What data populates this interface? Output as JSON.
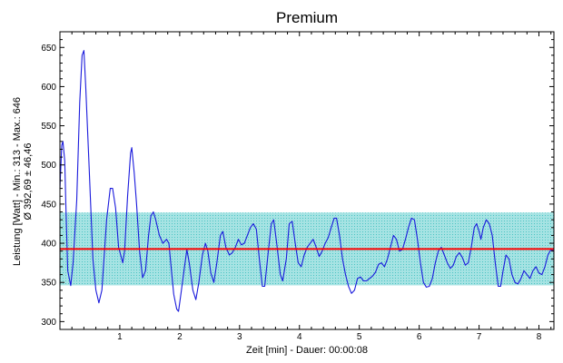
{
  "chart_data": {
    "type": "line",
    "title": "Premium",
    "xlabel": "Zeit [min] - Dauer: 00:00:08",
    "ylabel_line1": "Leistung [Watt] - Min.: 313 - Max.: 646",
    "ylabel_line2": "Ø 392,69 ± 46,46",
    "xlim": [
      0,
      8.25
    ],
    "ylim": [
      290,
      670
    ],
    "x_ticks": [
      1,
      2,
      3,
      4,
      5,
      6,
      7,
      8
    ],
    "y_ticks": [
      300,
      350,
      400,
      450,
      500,
      550,
      600,
      650
    ],
    "grid": false,
    "mean": 392.69,
    "std": 46.46,
    "band": [
      346.23,
      439.15
    ],
    "colors": {
      "line": "#1a1adc",
      "mean_line": "#ff0000",
      "band_fill": "#a6e3e3",
      "band_stroke": "#4cc4c4"
    },
    "series": [
      {
        "values": [
          [
            0.0,
            470
          ],
          [
            0.03,
            525
          ],
          [
            0.05,
            530
          ],
          [
            0.08,
            505
          ],
          [
            0.1,
            445
          ],
          [
            0.13,
            365
          ],
          [
            0.18,
            346
          ],
          [
            0.22,
            375
          ],
          [
            0.28,
            455
          ],
          [
            0.33,
            580
          ],
          [
            0.37,
            640
          ],
          [
            0.4,
            646
          ],
          [
            0.43,
            600
          ],
          [
            0.48,
            510
          ],
          [
            0.55,
            380
          ],
          [
            0.6,
            340
          ],
          [
            0.65,
            324
          ],
          [
            0.7,
            340
          ],
          [
            0.78,
            430
          ],
          [
            0.84,
            470
          ],
          [
            0.88,
            470
          ],
          [
            0.93,
            445
          ],
          [
            0.98,
            395
          ],
          [
            1.05,
            375
          ],
          [
            1.08,
            390
          ],
          [
            1.13,
            460
          ],
          [
            1.18,
            515
          ],
          [
            1.2,
            522
          ],
          [
            1.24,
            490
          ],
          [
            1.28,
            450
          ],
          [
            1.33,
            390
          ],
          [
            1.38,
            356
          ],
          [
            1.43,
            365
          ],
          [
            1.48,
            410
          ],
          [
            1.52,
            435
          ],
          [
            1.56,
            440
          ],
          [
            1.6,
            430
          ],
          [
            1.66,
            410
          ],
          [
            1.72,
            400
          ],
          [
            1.78,
            405
          ],
          [
            1.82,
            400
          ],
          [
            1.85,
            375
          ],
          [
            1.9,
            335
          ],
          [
            1.95,
            316
          ],
          [
            1.98,
            313
          ],
          [
            2.02,
            335
          ],
          [
            2.08,
            370
          ],
          [
            2.12,
            392
          ],
          [
            2.16,
            375
          ],
          [
            2.22,
            340
          ],
          [
            2.27,
            328
          ],
          [
            2.32,
            350
          ],
          [
            2.38,
            385
          ],
          [
            2.43,
            400
          ],
          [
            2.47,
            390
          ],
          [
            2.52,
            362
          ],
          [
            2.57,
            350
          ],
          [
            2.62,
            375
          ],
          [
            2.68,
            410
          ],
          [
            2.72,
            415
          ],
          [
            2.77,
            395
          ],
          [
            2.83,
            385
          ],
          [
            2.88,
            388
          ],
          [
            2.93,
            395
          ],
          [
            2.98,
            405
          ],
          [
            3.03,
            398
          ],
          [
            3.08,
            400
          ],
          [
            3.13,
            410
          ],
          [
            3.18,
            420
          ],
          [
            3.23,
            425
          ],
          [
            3.28,
            418
          ],
          [
            3.33,
            380
          ],
          [
            3.38,
            345
          ],
          [
            3.42,
            345
          ],
          [
            3.48,
            390
          ],
          [
            3.53,
            425
          ],
          [
            3.57,
            430
          ],
          [
            3.62,
            400
          ],
          [
            3.68,
            360
          ],
          [
            3.72,
            352
          ],
          [
            3.78,
            380
          ],
          [
            3.83,
            425
          ],
          [
            3.88,
            428
          ],
          [
            3.93,
            400
          ],
          [
            3.98,
            375
          ],
          [
            4.03,
            370
          ],
          [
            4.08,
            385
          ],
          [
            4.13,
            395
          ],
          [
            4.18,
            400
          ],
          [
            4.23,
            405
          ],
          [
            4.28,
            395
          ],
          [
            4.33,
            383
          ],
          [
            4.38,
            390
          ],
          [
            4.43,
            400
          ],
          [
            4.48,
            407
          ],
          [
            4.53,
            420
          ],
          [
            4.58,
            432
          ],
          [
            4.62,
            432
          ],
          [
            4.67,
            410
          ],
          [
            4.72,
            380
          ],
          [
            4.77,
            360
          ],
          [
            4.82,
            345
          ],
          [
            4.87,
            336
          ],
          [
            4.92,
            340
          ],
          [
            4.97,
            355
          ],
          [
            5.02,
            357
          ],
          [
            5.07,
            352
          ],
          [
            5.12,
            352
          ],
          [
            5.17,
            355
          ],
          [
            5.22,
            358
          ],
          [
            5.27,
            363
          ],
          [
            5.32,
            373
          ],
          [
            5.37,
            375
          ],
          [
            5.42,
            370
          ],
          [
            5.47,
            380
          ],
          [
            5.52,
            395
          ],
          [
            5.57,
            410
          ],
          [
            5.62,
            405
          ],
          [
            5.67,
            390
          ],
          [
            5.72,
            392
          ],
          [
            5.77,
            405
          ],
          [
            5.82,
            420
          ],
          [
            5.87,
            432
          ],
          [
            5.92,
            430
          ],
          [
            5.97,
            405
          ],
          [
            6.02,
            375
          ],
          [
            6.07,
            350
          ],
          [
            6.12,
            344
          ],
          [
            6.17,
            345
          ],
          [
            6.22,
            355
          ],
          [
            6.27,
            375
          ],
          [
            6.32,
            390
          ],
          [
            6.37,
            395
          ],
          [
            6.42,
            385
          ],
          [
            6.47,
            375
          ],
          [
            6.52,
            368
          ],
          [
            6.57,
            372
          ],
          [
            6.62,
            383
          ],
          [
            6.67,
            388
          ],
          [
            6.72,
            382
          ],
          [
            6.77,
            372
          ],
          [
            6.82,
            375
          ],
          [
            6.87,
            395
          ],
          [
            6.92,
            420
          ],
          [
            6.96,
            425
          ],
          [
            7.0,
            415
          ],
          [
            7.03,
            405
          ],
          [
            7.07,
            420
          ],
          [
            7.12,
            430
          ],
          [
            7.17,
            425
          ],
          [
            7.22,
            410
          ],
          [
            7.27,
            375
          ],
          [
            7.32,
            345
          ],
          [
            7.36,
            345
          ],
          [
            7.4,
            365
          ],
          [
            7.45,
            385
          ],
          [
            7.5,
            380
          ],
          [
            7.55,
            360
          ],
          [
            7.6,
            350
          ],
          [
            7.65,
            348
          ],
          [
            7.7,
            355
          ],
          [
            7.75,
            365
          ],
          [
            7.8,
            360
          ],
          [
            7.85,
            355
          ],
          [
            7.9,
            365
          ],
          [
            7.95,
            370
          ],
          [
            8.0,
            362
          ],
          [
            8.05,
            360
          ],
          [
            8.1,
            370
          ],
          [
            8.15,
            385
          ],
          [
            8.2,
            392
          ],
          [
            8.25,
            390
          ]
        ]
      }
    ]
  }
}
